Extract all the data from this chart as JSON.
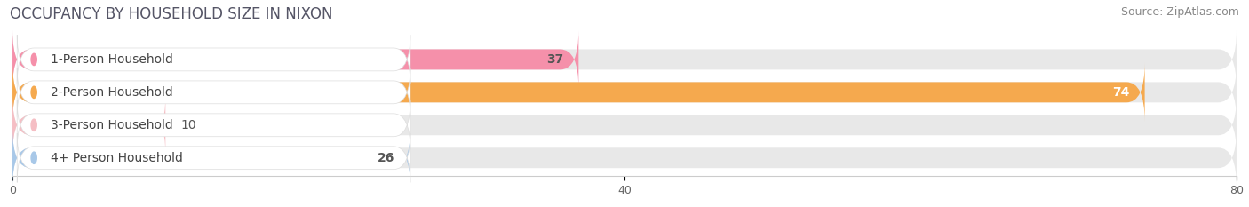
{
  "title": "OCCUPANCY BY HOUSEHOLD SIZE IN NIXON",
  "source": "Source: ZipAtlas.com",
  "categories": [
    "1-Person Household",
    "2-Person Household",
    "3-Person Household",
    "4+ Person Household"
  ],
  "values": [
    37,
    74,
    10,
    26
  ],
  "bar_colors": [
    "#f590aa",
    "#f5a94e",
    "#f5bec4",
    "#a8c8e8"
  ],
  "bar_bg_color": "#e8e8e8",
  "value_text_colors": [
    "#555555",
    "#ffffff",
    "#555555",
    "#555555"
  ],
  "xlim": [
    0,
    80
  ],
  "xticks": [
    0,
    40,
    80
  ],
  "title_fontsize": 12,
  "source_fontsize": 9,
  "label_fontsize": 10,
  "value_fontsize": 10,
  "background_color": "#ffffff",
  "bar_bg_max": 80
}
